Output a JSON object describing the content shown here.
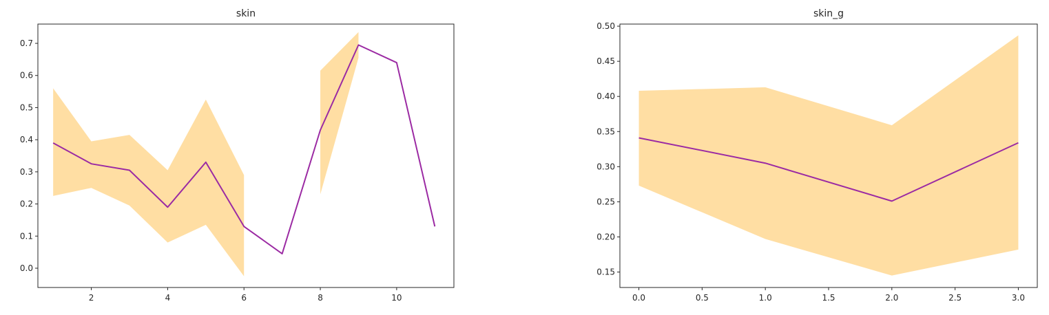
{
  "chart_data": [
    {
      "type": "line",
      "title": "skin",
      "xlabel": "",
      "ylabel": "",
      "xlim": [
        0.6,
        11.5
      ],
      "ylim": [
        -0.06,
        0.76
      ],
      "xticks": [
        2,
        4,
        6,
        8,
        10
      ],
      "yticks": [
        0.0,
        0.1,
        0.2,
        0.3,
        0.4,
        0.5,
        0.6,
        0.7
      ],
      "tick_format": 1,
      "grid": false,
      "line_color": "#9b2aa3",
      "band_color": "#ffdea3",
      "series": [
        {
          "x": [
            1,
            2,
            3,
            4,
            5,
            6,
            7,
            8,
            9,
            10,
            11
          ],
          "values": [
            0.39,
            0.325,
            0.305,
            0.19,
            0.33,
            0.13,
            0.045,
            0.43,
            0.695,
            0.64,
            0.13
          ]
        }
      ],
      "bands": [
        {
          "x": [
            1,
            2,
            3,
            4,
            5,
            6
          ],
          "lower": [
            0.225,
            0.25,
            0.195,
            0.08,
            0.135,
            -0.025
          ],
          "upper": [
            0.56,
            0.395,
            0.415,
            0.305,
            0.525,
            0.29
          ]
        },
        {
          "x": [
            8,
            9
          ],
          "lower": [
            0.23,
            0.655
          ],
          "upper": [
            0.615,
            0.735
          ]
        }
      ]
    },
    {
      "type": "line",
      "title": "skin_g",
      "xlabel": "",
      "ylabel": "",
      "xlim": [
        -0.15,
        3.15
      ],
      "ylim": [
        0.128,
        0.503
      ],
      "xticks": [
        0.0,
        0.5,
        1.0,
        1.5,
        2.0,
        2.5,
        3.0
      ],
      "yticks": [
        0.15,
        0.2,
        0.25,
        0.3,
        0.35,
        0.4,
        0.45,
        0.5
      ],
      "xtick_format": 1,
      "ytick_format": 2,
      "grid": false,
      "line_color": "#9b2aa3",
      "band_color": "#ffdea3",
      "series": [
        {
          "x": [
            0,
            1,
            2,
            3
          ],
          "values": [
            0.341,
            0.305,
            0.251,
            0.334
          ]
        }
      ],
      "bands": [
        {
          "x": [
            0,
            1,
            2,
            3
          ],
          "lower": [
            0.273,
            0.197,
            0.145,
            0.182
          ],
          "upper": [
            0.408,
            0.413,
            0.359,
            0.487
          ]
        }
      ]
    }
  ]
}
